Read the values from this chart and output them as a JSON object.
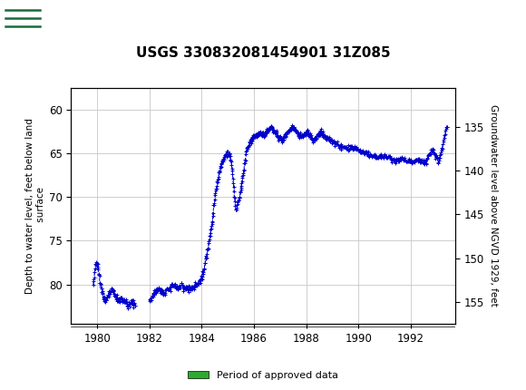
{
  "title": "USGS 330832081454901 31Z085",
  "ylabel_left": "Depth to water level, feet below land\n surface",
  "ylabel_right": "Groundwater level above NGVD 1929, feet",
  "ylim_left": [
    57.5,
    84.5
  ],
  "ylim_right_top": 155,
  "ylim_right_bottom": 130,
  "xlim": [
    1979.0,
    1993.7
  ],
  "yticks_left": [
    60,
    65,
    70,
    75,
    80
  ],
  "yticks_right": [
    155,
    150,
    145,
    140,
    135
  ],
  "xticks": [
    1980,
    1982,
    1984,
    1986,
    1988,
    1990,
    1992
  ],
  "line_color": "#0000CC",
  "marker": "+",
  "linestyle": "--",
  "green_bar_color": "#2EAA2E",
  "header_color": "#1A6B3C",
  "background_color": "#ffffff",
  "grid_color": "#c8c8c8",
  "title_fontsize": 11,
  "axis_fontsize": 7.5,
  "tick_fontsize": 8.5
}
